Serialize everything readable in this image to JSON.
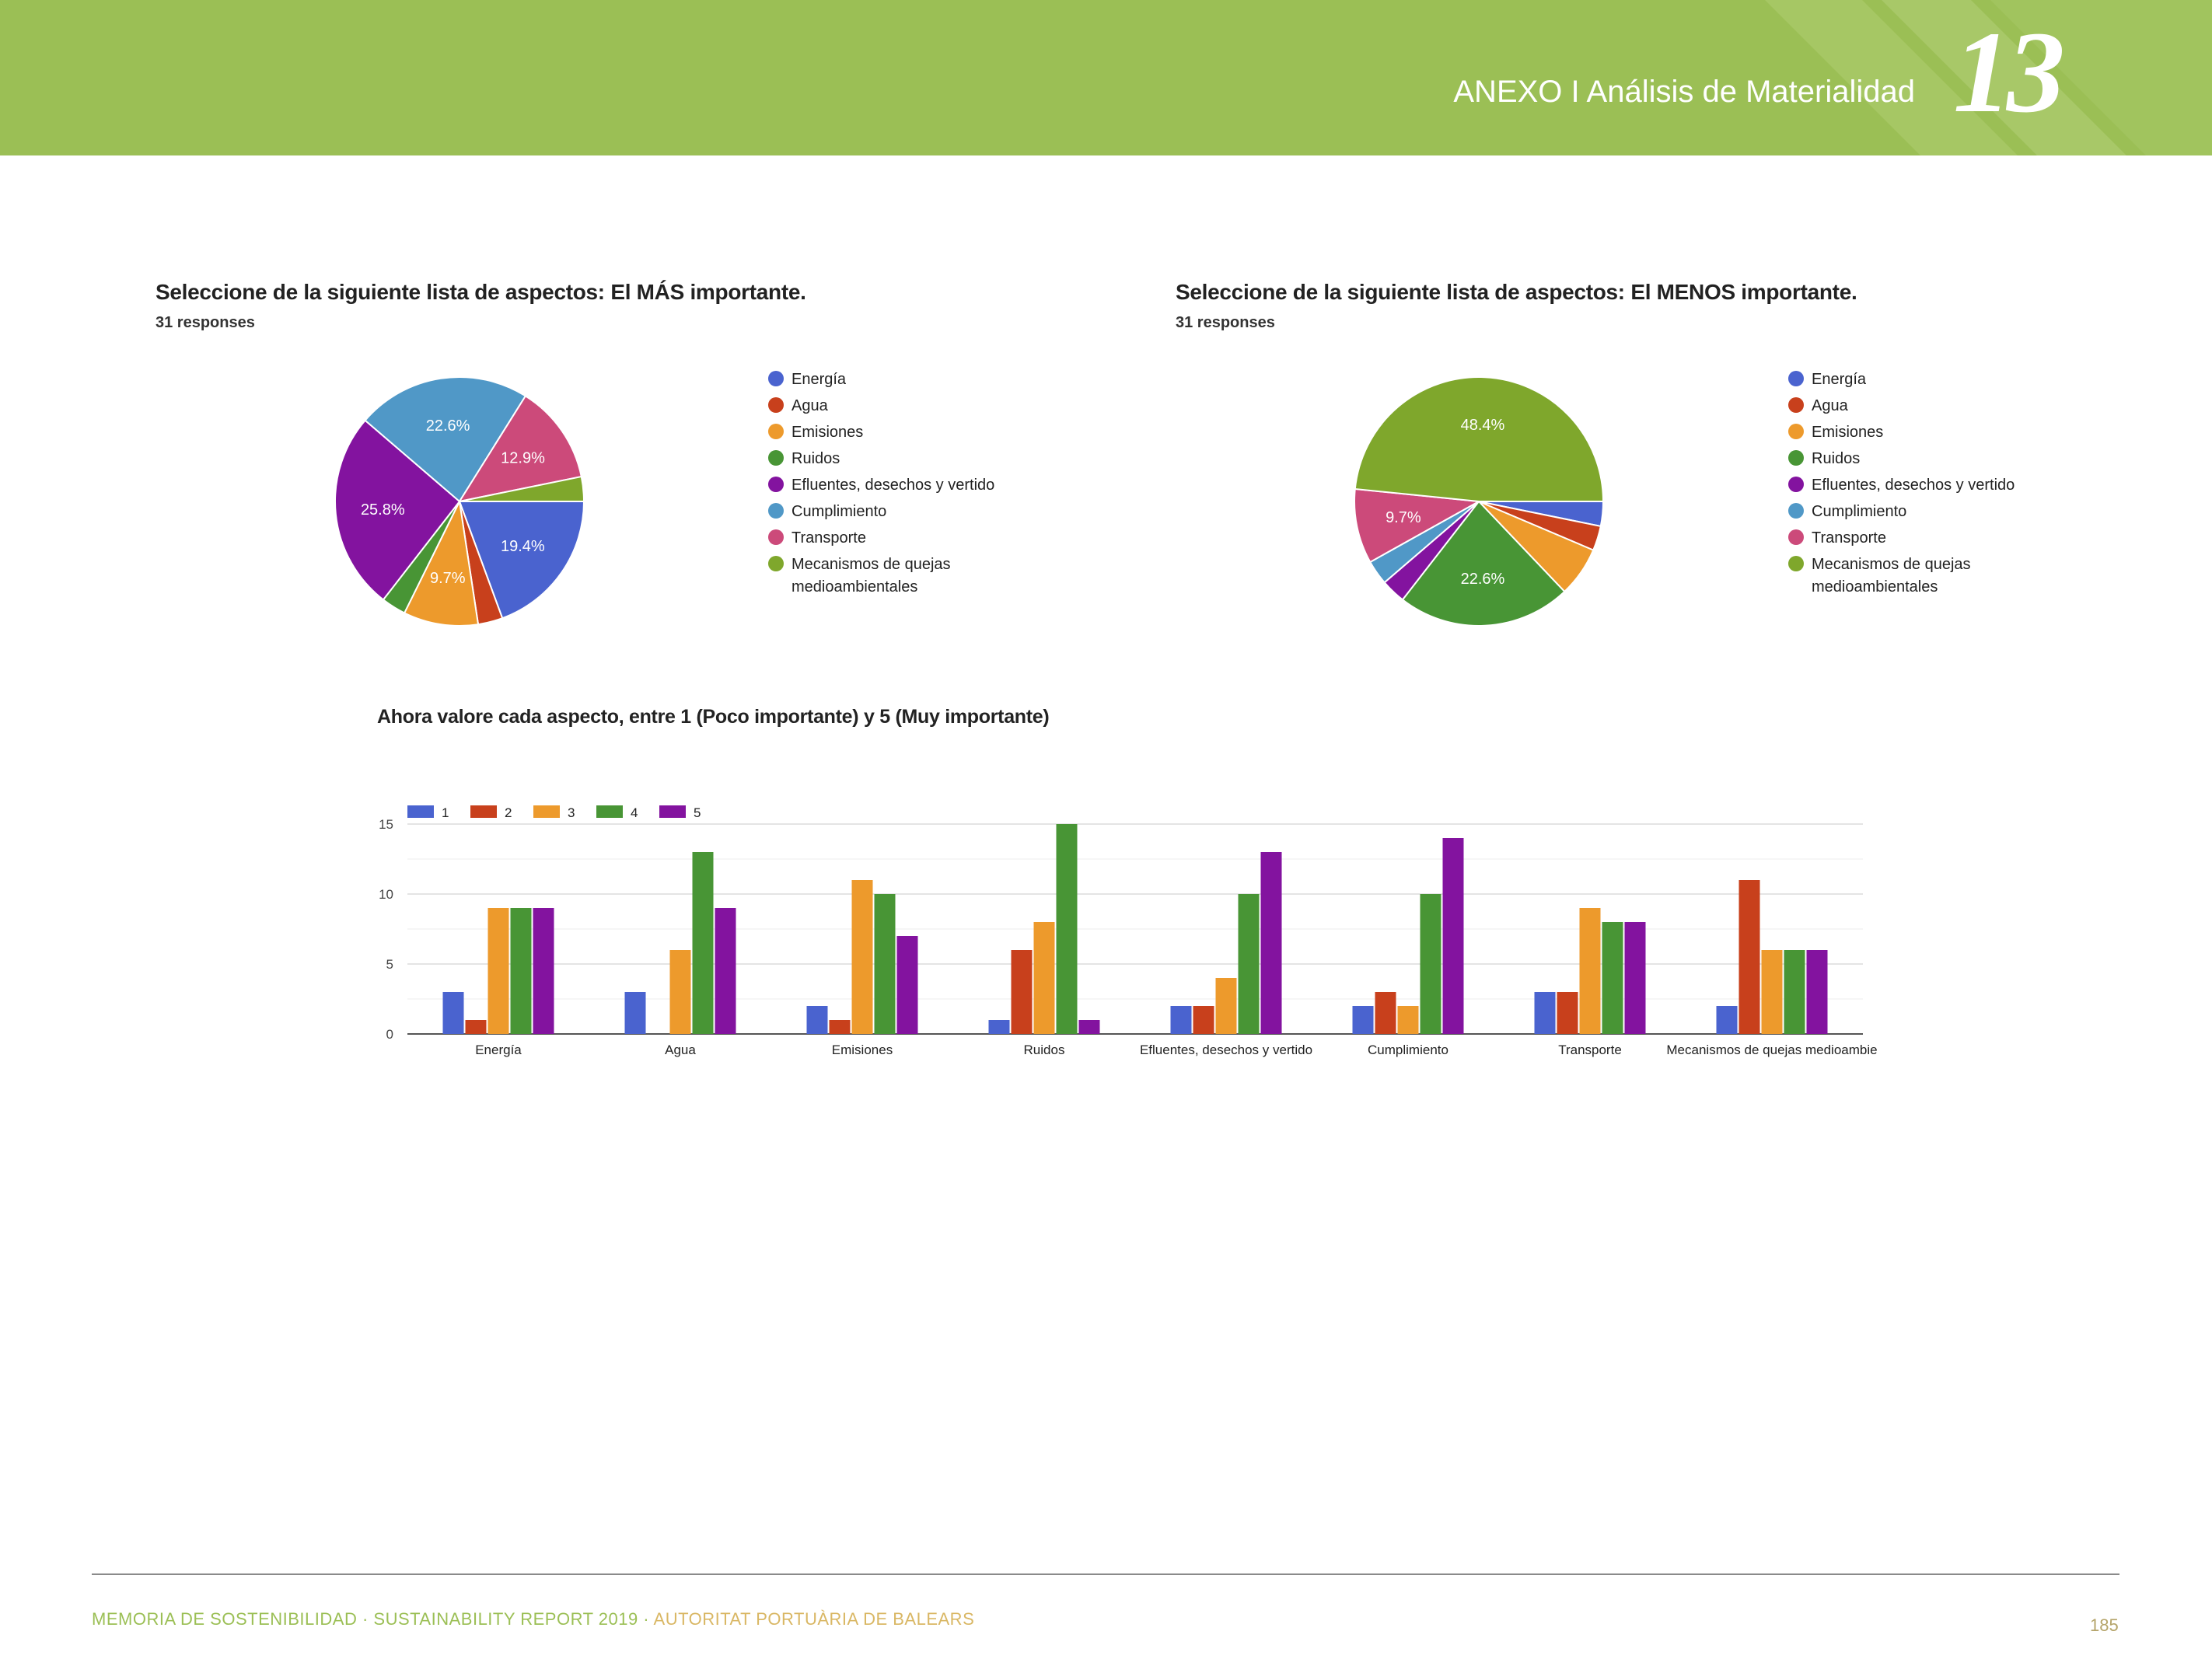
{
  "header": {
    "title": "ANEXO I Análisis de Materialidad",
    "chapter": "13",
    "color": "#9bbf55"
  },
  "legend_labels": [
    "Energía",
    "Agua",
    "Emisiones",
    "Ruidos",
    "Efluentes, desechos y vertido",
    "Cumplimiento",
    "Transporte",
    "Mecanismos de quejas medioambientales"
  ],
  "colors": [
    "#4a63cf",
    "#c8401c",
    "#ed9a2c",
    "#489535",
    "#83139f",
    "#5098c7",
    "#cc4a7a",
    "#7fa72c"
  ],
  "chart_data": [
    {
      "type": "pie",
      "title": "Seleccione de la siguiente lista de aspectos: El MÁS importante.",
      "subtitle": "31 responses",
      "categories": [
        "Energía",
        "Agua",
        "Emisiones",
        "Ruidos",
        "Efluentes, desechos y vertido",
        "Cumplimiento",
        "Transporte",
        "Mecanismos de quejas medioambientales"
      ],
      "values": [
        19.4,
        3.2,
        9.7,
        3.2,
        25.8,
        22.6,
        12.9,
        3.2
      ],
      "labels": [
        "19.4%",
        "",
        "9.7%",
        "",
        "25.8%",
        "22.6%",
        "12.9%",
        ""
      ],
      "legend": "right"
    },
    {
      "type": "pie",
      "title": "Seleccione de la siguiente lista de aspectos: El MENOS importante.",
      "subtitle": "31 responses",
      "categories": [
        "Energía",
        "Agua",
        "Emisiones",
        "Ruidos",
        "Efluentes, desechos y vertido",
        "Cumplimiento",
        "Transporte",
        "Mecanismos de quejas medioambientales"
      ],
      "values": [
        3.2,
        3.2,
        6.5,
        22.6,
        3.2,
        3.2,
        9.7,
        48.4
      ],
      "labels": [
        "",
        "",
        "",
        "22.6%",
        "",
        "",
        "9.7%",
        "48.4%"
      ],
      "legend": "right"
    },
    {
      "type": "bar",
      "title": "Ahora valore cada aspecto, entre 1 (Poco importante) y 5 (Muy importante)",
      "categories": [
        "Energía",
        "Agua",
        "Emisiones",
        "Ruidos",
        "Efluentes, desechos y vertido",
        "Cumplimiento",
        "Transporte",
        "Mecanismos de quejas medioambie"
      ],
      "series": [
        {
          "name": "1",
          "values": [
            3,
            3,
            2,
            1,
            2,
            2,
            3,
            2
          ]
        },
        {
          "name": "2",
          "values": [
            1,
            0,
            1,
            6,
            2,
            3,
            3,
            11
          ]
        },
        {
          "name": "3",
          "values": [
            9,
            6,
            11,
            8,
            4,
            2,
            9,
            6
          ]
        },
        {
          "name": "4",
          "values": [
            9,
            13,
            10,
            15,
            10,
            10,
            8,
            6
          ]
        },
        {
          "name": "5",
          "values": [
            9,
            9,
            7,
            1,
            13,
            14,
            8,
            6
          ]
        }
      ],
      "series_colors": [
        "#4a63cf",
        "#c8401c",
        "#ed9a2c",
        "#489535",
        "#83139f"
      ],
      "yticks": [
        0,
        5,
        10,
        15
      ],
      "ylim": [
        0,
        15
      ],
      "legend": "top-left",
      "grid": true
    }
  ],
  "footer": {
    "left": "MEMORIA DE SOSTENIBILIDAD · SUSTAINABILITY REPORT 2019 · ",
    "accent": "AUTORITAT PORTUÀRIA DE BALEARS",
    "page": "185"
  }
}
